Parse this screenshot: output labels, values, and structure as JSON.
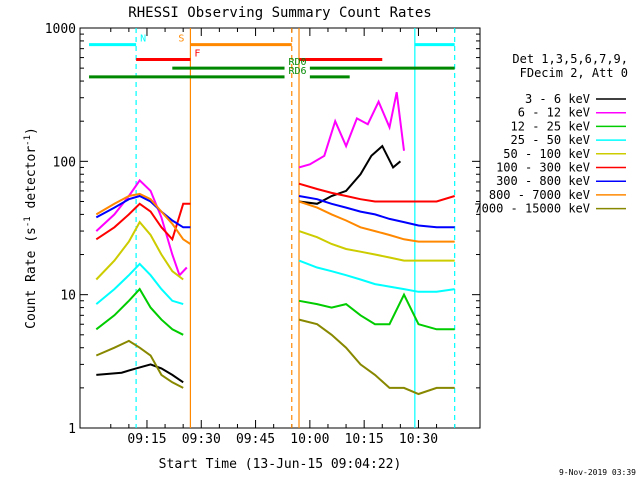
{
  "chart_data": {
    "type": "line",
    "title": "RHESSI Observing Summary Count Rates",
    "xlabel": "Start Time (13-Jun-15 09:04:22)",
    "ylabel_main": "Count Rate (s",
    "ylabel_sup1": "-1",
    "ylabel_mid": " detector",
    "ylabel_sup2": "-1",
    "ylabel_end": ")",
    "ylog": true,
    "ylim": [
      1,
      1000
    ],
    "xlim_min": [
      1,
      79
    ],
    "x_ticks": [
      {
        "label": "09:15",
        "min": 15
      },
      {
        "label": "09:30",
        "min": 30
      },
      {
        "label": "09:45",
        "min": 45
      },
      {
        "label": "10:00",
        "min": 60
      },
      {
        "label": "10:15",
        "min": 75
      }
    ],
    "x_tick_10_30": {
      "label": "10:30",
      "min": 90
    },
    "y_ticks": [
      {
        "label": "1",
        "value": 1
      },
      {
        "label": "10",
        "value": 10
      },
      {
        "label": "100",
        "value": 100
      },
      {
        "label": "1000",
        "value": 1000
      }
    ],
    "legend_header": [
      "Det 1,3,5,6,7,9,",
      "FDecim 2, Att 0"
    ],
    "series": [
      {
        "name": "3 - 6 keV",
        "color": "#000000",
        "seg1": [
          [
            1,
            2.5
          ],
          [
            8,
            2.6
          ],
          [
            12,
            2.8
          ],
          [
            16,
            3
          ],
          [
            19,
            2.8
          ],
          [
            22,
            2.5
          ],
          [
            25,
            2.2
          ]
        ],
        "seg2": [
          [
            57,
            50
          ],
          [
            62,
            48
          ],
          [
            66,
            55
          ],
          [
            70,
            60
          ],
          [
            74,
            80
          ],
          [
            77,
            110
          ],
          [
            80,
            130
          ],
          [
            83,
            90
          ],
          [
            85,
            100
          ]
        ]
      },
      {
        "name": "6 - 12 keV",
        "color": "#ff00ff",
        "seg1": [
          [
            1,
            30
          ],
          [
            6,
            40
          ],
          [
            10,
            55
          ],
          [
            13,
            72
          ],
          [
            16,
            60
          ],
          [
            19,
            38
          ],
          [
            22,
            20
          ],
          [
            24,
            14
          ],
          [
            26,
            16
          ]
        ],
        "seg2": [
          [
            57,
            90
          ],
          [
            60,
            95
          ],
          [
            64,
            110
          ],
          [
            67,
            200
          ],
          [
            70,
            130
          ],
          [
            73,
            210
          ],
          [
            76,
            190
          ],
          [
            79,
            280
          ],
          [
            82,
            180
          ],
          [
            84,
            330
          ],
          [
            86,
            120
          ]
        ]
      },
      {
        "name": "12 - 25 keV",
        "color": "#00cc00",
        "seg1": [
          [
            1,
            5.5
          ],
          [
            6,
            7
          ],
          [
            10,
            9
          ],
          [
            13,
            11
          ],
          [
            16,
            8
          ],
          [
            19,
            6.5
          ],
          [
            22,
            5.5
          ],
          [
            25,
            5
          ]
        ],
        "seg2": [
          [
            57,
            9
          ],
          [
            62,
            8.5
          ],
          [
            66,
            8
          ],
          [
            70,
            8.5
          ],
          [
            74,
            7
          ],
          [
            78,
            6
          ],
          [
            82,
            6
          ],
          [
            86,
            10
          ],
          [
            90,
            6
          ],
          [
            95,
            5.5
          ],
          [
            100,
            5.5
          ]
        ]
      },
      {
        "name": "25 - 50 keV",
        "color": "#00ffff",
        "seg1": [
          [
            1,
            8.5
          ],
          [
            6,
            11
          ],
          [
            10,
            14
          ],
          [
            13,
            17
          ],
          [
            16,
            14
          ],
          [
            19,
            11
          ],
          [
            22,
            9
          ],
          [
            25,
            8.5
          ]
        ],
        "seg2": [
          [
            57,
            18
          ],
          [
            62,
            16
          ],
          [
            66,
            15
          ],
          [
            70,
            14
          ],
          [
            74,
            13
          ],
          [
            78,
            12
          ],
          [
            82,
            11.5
          ],
          [
            86,
            11
          ],
          [
            90,
            10.5
          ],
          [
            95,
            10.5
          ],
          [
            100,
            11
          ]
        ]
      },
      {
        "name": "50 - 100 keV",
        "color": "#cccc00",
        "seg1": [
          [
            1,
            13
          ],
          [
            6,
            18
          ],
          [
            10,
            25
          ],
          [
            13,
            35
          ],
          [
            16,
            28
          ],
          [
            19,
            20
          ],
          [
            22,
            15
          ],
          [
            25,
            13
          ]
        ],
        "seg2": [
          [
            57,
            30
          ],
          [
            62,
            27
          ],
          [
            66,
            24
          ],
          [
            70,
            22
          ],
          [
            74,
            21
          ],
          [
            78,
            20
          ],
          [
            82,
            19
          ],
          [
            86,
            18
          ],
          [
            90,
            18
          ],
          [
            95,
            18
          ],
          [
            100,
            18
          ]
        ]
      },
      {
        "name": "100 - 300 keV",
        "color": "#ff0000",
        "seg1": [
          [
            1,
            26
          ],
          [
            6,
            32
          ],
          [
            10,
            40
          ],
          [
            13,
            48
          ],
          [
            16,
            42
          ],
          [
            19,
            32
          ],
          [
            22,
            26
          ],
          [
            25,
            48
          ],
          [
            27,
            48
          ]
        ],
        "seg2": [
          [
            57,
            68
          ],
          [
            62,
            62
          ],
          [
            66,
            58
          ],
          [
            70,
            55
          ],
          [
            74,
            52
          ],
          [
            78,
            50
          ],
          [
            82,
            50
          ],
          [
            86,
            50
          ],
          [
            90,
            50
          ],
          [
            95,
            50
          ],
          [
            100,
            55
          ]
        ]
      },
      {
        "name": "300 - 800 keV",
        "color": "#0000ff",
        "seg1": [
          [
            1,
            38
          ],
          [
            6,
            45
          ],
          [
            10,
            52
          ],
          [
            13,
            55
          ],
          [
            16,
            50
          ],
          [
            19,
            42
          ],
          [
            22,
            36
          ],
          [
            25,
            32
          ],
          [
            27,
            32
          ]
        ],
        "seg2": [
          [
            57,
            55
          ],
          [
            62,
            52
          ],
          [
            66,
            48
          ],
          [
            70,
            45
          ],
          [
            74,
            42
          ],
          [
            78,
            40
          ],
          [
            82,
            37
          ],
          [
            86,
            35
          ],
          [
            90,
            33
          ],
          [
            95,
            32
          ],
          [
            100,
            32
          ]
        ]
      },
      {
        "name": "800 - 7000 keV",
        "color": "#ff8800",
        "seg1": [
          [
            1,
            40
          ],
          [
            6,
            48
          ],
          [
            10,
            55
          ],
          [
            13,
            57
          ],
          [
            16,
            52
          ],
          [
            19,
            42
          ],
          [
            22,
            34
          ],
          [
            25,
            26
          ],
          [
            27,
            24
          ]
        ],
        "seg2": [
          [
            57,
            50
          ],
          [
            62,
            45
          ],
          [
            66,
            40
          ],
          [
            70,
            36
          ],
          [
            74,
            32
          ],
          [
            78,
            30
          ],
          [
            82,
            28
          ],
          [
            86,
            26
          ],
          [
            90,
            25
          ],
          [
            95,
            25
          ],
          [
            100,
            25
          ]
        ]
      },
      {
        "name": "7000 - 15000 keV",
        "color": "#888800",
        "seg1": [
          [
            1,
            3.5
          ],
          [
            6,
            4
          ],
          [
            10,
            4.5
          ],
          [
            13,
            4
          ],
          [
            16,
            3.5
          ],
          [
            19,
            2.5
          ],
          [
            22,
            2.2
          ],
          [
            25,
            2
          ]
        ],
        "seg2": [
          [
            57,
            6.5
          ],
          [
            62,
            6
          ],
          [
            66,
            5
          ],
          [
            70,
            4
          ],
          [
            74,
            3
          ],
          [
            78,
            2.5
          ],
          [
            82,
            2
          ],
          [
            86,
            2
          ],
          [
            90,
            1.8
          ],
          [
            95,
            2
          ],
          [
            100,
            2
          ]
        ]
      }
    ],
    "flags": [
      {
        "label": "N",
        "color": "#00ffff",
        "level": 750,
        "segments": [
          [
            -1,
            12
          ],
          [
            89,
            100
          ]
        ]
      },
      {
        "label": "S",
        "color": "#ff8800",
        "level": 750,
        "segments": [
          [
            27,
            55
          ]
        ]
      },
      {
        "label": "F",
        "color": "#ff0000",
        "level": 580,
        "segments": [
          [
            12,
            27
          ],
          [
            57,
            80
          ]
        ]
      },
      {
        "label": "RD0",
        "color": "#008800",
        "level": 500,
        "segments": [
          [
            22,
            53
          ],
          [
            60,
            100
          ]
        ]
      },
      {
        "label": "RD6",
        "color": "#008800",
        "level": 430,
        "segments": [
          [
            -1,
            53
          ],
          [
            60,
            71
          ]
        ]
      }
    ],
    "vlines": [
      {
        "min": 12,
        "color": "#00ffff",
        "dashed": true
      },
      {
        "min": 27,
        "color": "#ff8800",
        "dashed": false
      },
      {
        "min": 55,
        "color": "#ff8800",
        "dashed": true
      },
      {
        "min": 57,
        "color": "#ff8800",
        "dashed": false
      },
      {
        "min": 89,
        "color": "#00ffff",
        "dashed": false
      },
      {
        "min": 100,
        "color": "#00ffff",
        "dashed": true
      }
    ]
  },
  "footer_date": "9-Nov-2019 03:39"
}
